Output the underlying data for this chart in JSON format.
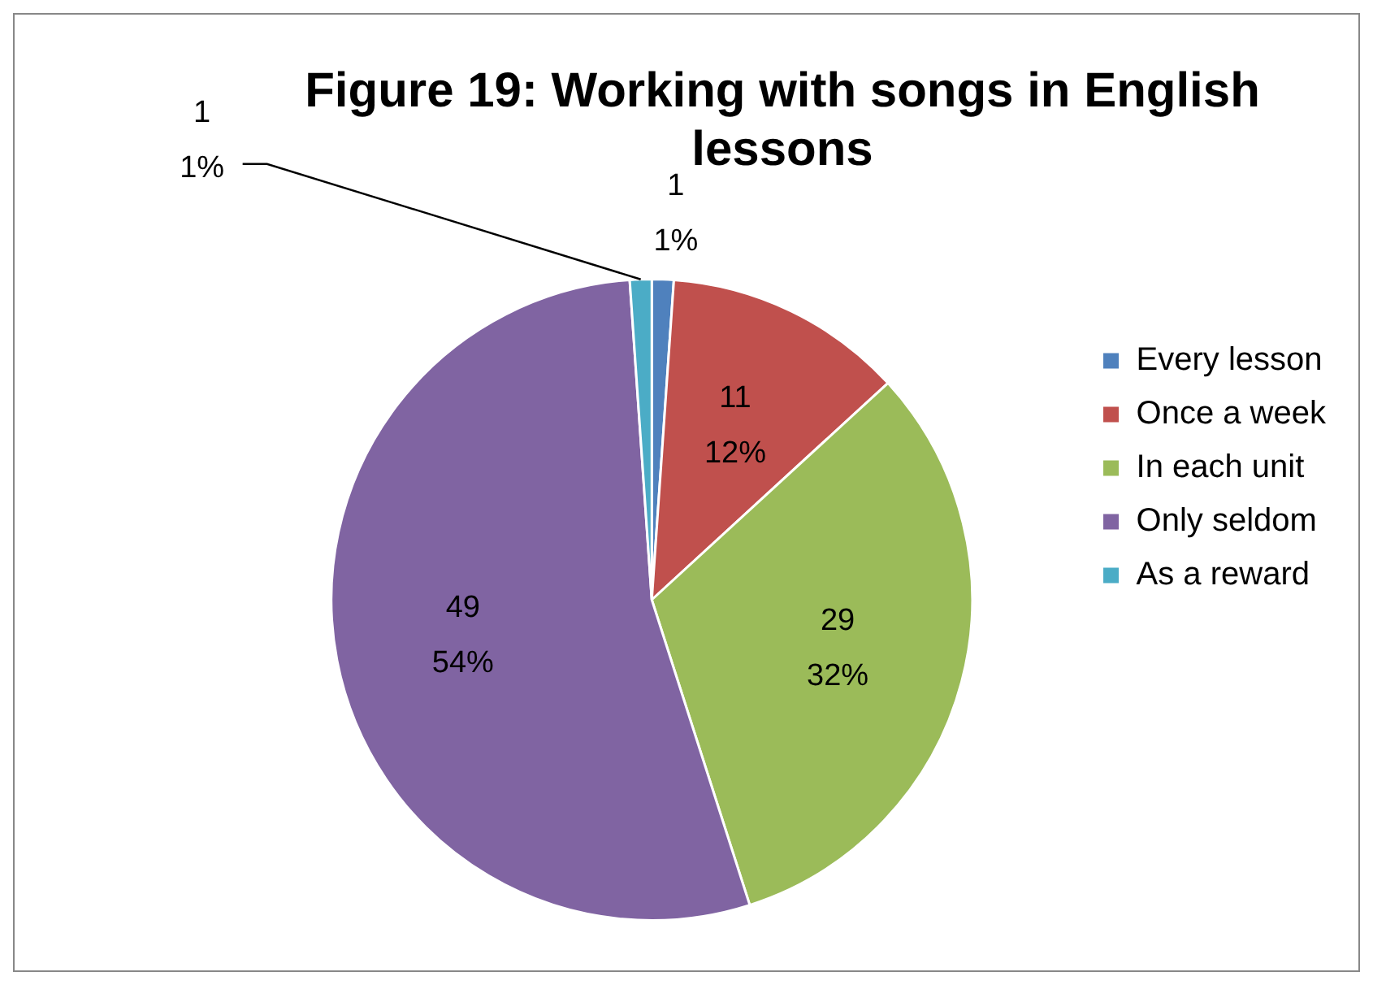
{
  "chart_data": {
    "type": "pie",
    "title": "Figure 19: Working with songs in English lessons",
    "categories": [
      "Every lesson",
      "Once a week",
      "In each unit",
      "Only seldom",
      "As a reward"
    ],
    "values": [
      1,
      11,
      29,
      49,
      1
    ],
    "colors": [
      "#4f81bd",
      "#c0504d",
      "#9bbb59",
      "#8064a2",
      "#4bacc6"
    ],
    "value_labels": [
      "1\n1%",
      "11\n12%",
      "29\n32%",
      "49\n54%",
      "1\n1%"
    ],
    "legend": "right"
  }
}
